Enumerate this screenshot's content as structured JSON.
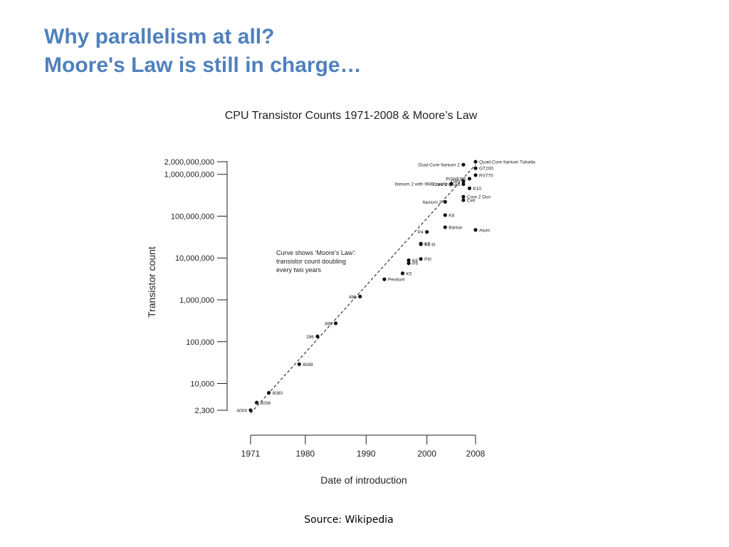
{
  "slide": {
    "title_line1": "Why parallelism at all?",
    "title_line2": "Moore's Law is still in charge…",
    "source": "Source: Wikipedia",
    "title_color": "#4f81bd"
  },
  "chart_data": {
    "type": "scatter",
    "title": "CPU Transistor Counts 1971-2008 & Moore’s Law",
    "xlabel": "Date of introduction",
    "ylabel": "Transistor count",
    "y_scale": "log",
    "x_ticks": [
      1971,
      1980,
      1990,
      2000,
      2008
    ],
    "y_ticks": [
      {
        "value": 2300,
        "label": "2,300"
      },
      {
        "value": 10000,
        "label": "10,000"
      },
      {
        "value": 100000,
        "label": "100,000"
      },
      {
        "value": 1000000,
        "label": "1,000,000"
      },
      {
        "value": 10000000,
        "label": "10,000,000"
      },
      {
        "value": 100000000,
        "label": "100,000,000"
      },
      {
        "value": 1000000000,
        "label": "1,000,000,000"
      },
      {
        "value": 2000000000,
        "label": "2,000,000,000"
      }
    ],
    "annotation": [
      "Curve shows ‘Moore’s Law’:",
      "transistor count doubling",
      "every two years"
    ],
    "trend": {
      "x": [
        1971,
        2008
      ],
      "y": [
        2300,
        1700000000
      ]
    },
    "points": [
      {
        "name": "4004",
        "x": 1971,
        "y": 2300,
        "label_side": "left"
      },
      {
        "name": "8008",
        "x": 1972,
        "y": 3500
      },
      {
        "name": "8080",
        "x": 1974,
        "y": 6000
      },
      {
        "name": "8088",
        "x": 1979,
        "y": 29000
      },
      {
        "name": "286",
        "x": 1982,
        "y": 134000,
        "label_side": "left"
      },
      {
        "name": "386",
        "x": 1985,
        "y": 275000,
        "label_side": "left"
      },
      {
        "name": "486",
        "x": 1989,
        "y": 1200000,
        "label_side": "left"
      },
      {
        "name": "Pentium",
        "x": 1993,
        "y": 3100000
      },
      {
        "name": "K5",
        "x": 1996,
        "y": 4300000
      },
      {
        "name": "K6",
        "x": 1997,
        "y": 8800000
      },
      {
        "name": "PII",
        "x": 1997,
        "y": 7500000
      },
      {
        "name": "PIII",
        "x": 1999,
        "y": 9500000
      },
      {
        "name": "K6-III",
        "x": 1999,
        "y": 21300000
      },
      {
        "name": "K7",
        "x": 1999,
        "y": 22000000
      },
      {
        "name": "P4",
        "x": 2000,
        "y": 42000000,
        "label_side": "left"
      },
      {
        "name": "Barton",
        "x": 2003,
        "y": 54300000
      },
      {
        "name": "K8",
        "x": 2003,
        "y": 105900000
      },
      {
        "name": "Atom",
        "x": 2008,
        "y": 47000000
      },
      {
        "name": "Itanium 2",
        "x": 2003,
        "y": 220000000,
        "label_side": "left"
      },
      {
        "name": "Core 2 Duo",
        "x": 2006,
        "y": 291000000
      },
      {
        "name": "Cell",
        "x": 2006,
        "y": 241000000
      },
      {
        "name": "Core 2 Quad",
        "x": 2006,
        "y": 582000000,
        "label_side": "left"
      },
      {
        "name": "K10",
        "x": 2007,
        "y": 463000000
      },
      {
        "name": "Itanium 2 with 9MB cache",
        "x": 2004,
        "y": 592000000,
        "label_side": "left"
      },
      {
        "name": "G80",
        "x": 2006,
        "y": 681000000,
        "label_side": "left"
      },
      {
        "name": "POWER6",
        "x": 2007,
        "y": 789000000,
        "label_side": "left"
      },
      {
        "name": "Dual-Core Itanium 2",
        "x": 2006,
        "y": 1700000000,
        "label_side": "left"
      },
      {
        "name": "RV770",
        "x": 2008,
        "y": 956000000
      },
      {
        "name": "GT200",
        "x": 2008,
        "y": 1400000000
      },
      {
        "name": "Quad-Core Itanium Tukwila",
        "x": 2008,
        "y": 2000000000
      }
    ]
  }
}
